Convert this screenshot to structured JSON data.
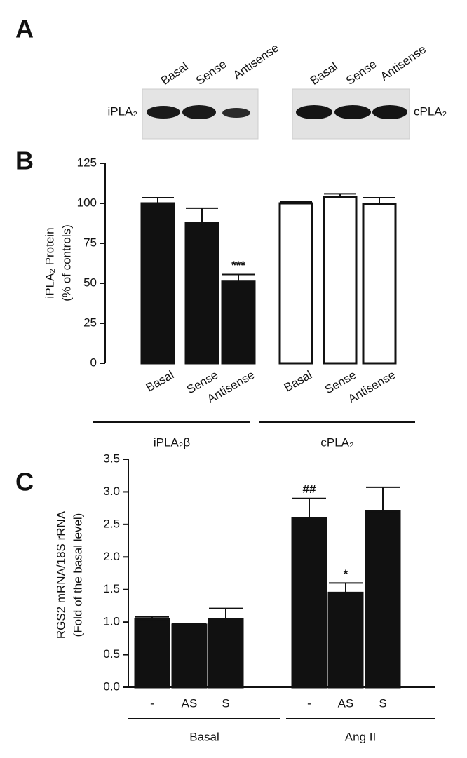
{
  "blot": {
    "panel_label": "A",
    "left": {
      "lanes": [
        "Basal",
        "Sense",
        "Antisense"
      ],
      "protein": "iPLA₂"
    },
    "right": {
      "lanes": [
        "Basal",
        "Sense",
        "Antisense"
      ],
      "protein": "cPLA₂"
    }
  },
  "chart_data": [
    {
      "type": "bar",
      "panel_label": "B",
      "y_label": [
        "iPLA₂ Protein",
        "(% of controls)"
      ],
      "ylim": [
        0,
        125
      ],
      "yticks": [
        0,
        25,
        50,
        75,
        100,
        125
      ],
      "series": [
        {
          "name": "iPLA₂β",
          "color": "#111111",
          "categories": [
            "Basal",
            "Sense",
            "Antisense"
          ],
          "values": [
            100,
            87.5,
            51
          ],
          "errors": [
            3.5,
            9.5,
            4.5
          ]
        },
        {
          "name": "cPLA₂",
          "color": "#ffffff",
          "categories": [
            "Basal",
            "Sense",
            "Antisense"
          ],
          "values": [
            100,
            104,
            99.5
          ],
          "errors": [
            1,
            2,
            4
          ]
        }
      ],
      "annotations": [
        {
          "text": "***",
          "series": 0,
          "index": 2
        }
      ]
    },
    {
      "type": "bar",
      "panel_label": "C",
      "y_label": [
        "RGS2 mRNA/18S rRNA",
        "(Fold of the basal level)"
      ],
      "ylim": [
        0,
        3.5
      ],
      "yticks": [
        {
          "value": 0,
          "label": "0.0"
        },
        0.5,
        {
          "value": 1,
          "label": "1.0"
        },
        1.5,
        {
          "value": 2,
          "label": "2.0"
        },
        2.5,
        {
          "value": 3,
          "label": "3.0"
        },
        3.5
      ],
      "series": [
        {
          "name": "Basal",
          "color": "#111111",
          "categories": [
            "-",
            "AS",
            "S"
          ],
          "values": [
            1.04,
            0.96,
            1.05
          ],
          "errors": [
            0.04,
            0.01,
            0.16
          ]
        },
        {
          "name": "Ang II",
          "color": "#111111",
          "categories": [
            "-",
            "AS",
            "S"
          ],
          "values": [
            2.6,
            1.45,
            2.7
          ],
          "errors": [
            0.3,
            0.15,
            0.37
          ]
        }
      ],
      "annotations": [
        {
          "text": "##",
          "series": 1,
          "index": 0
        },
        {
          "text": "*",
          "series": 1,
          "index": 1
        }
      ]
    }
  ]
}
